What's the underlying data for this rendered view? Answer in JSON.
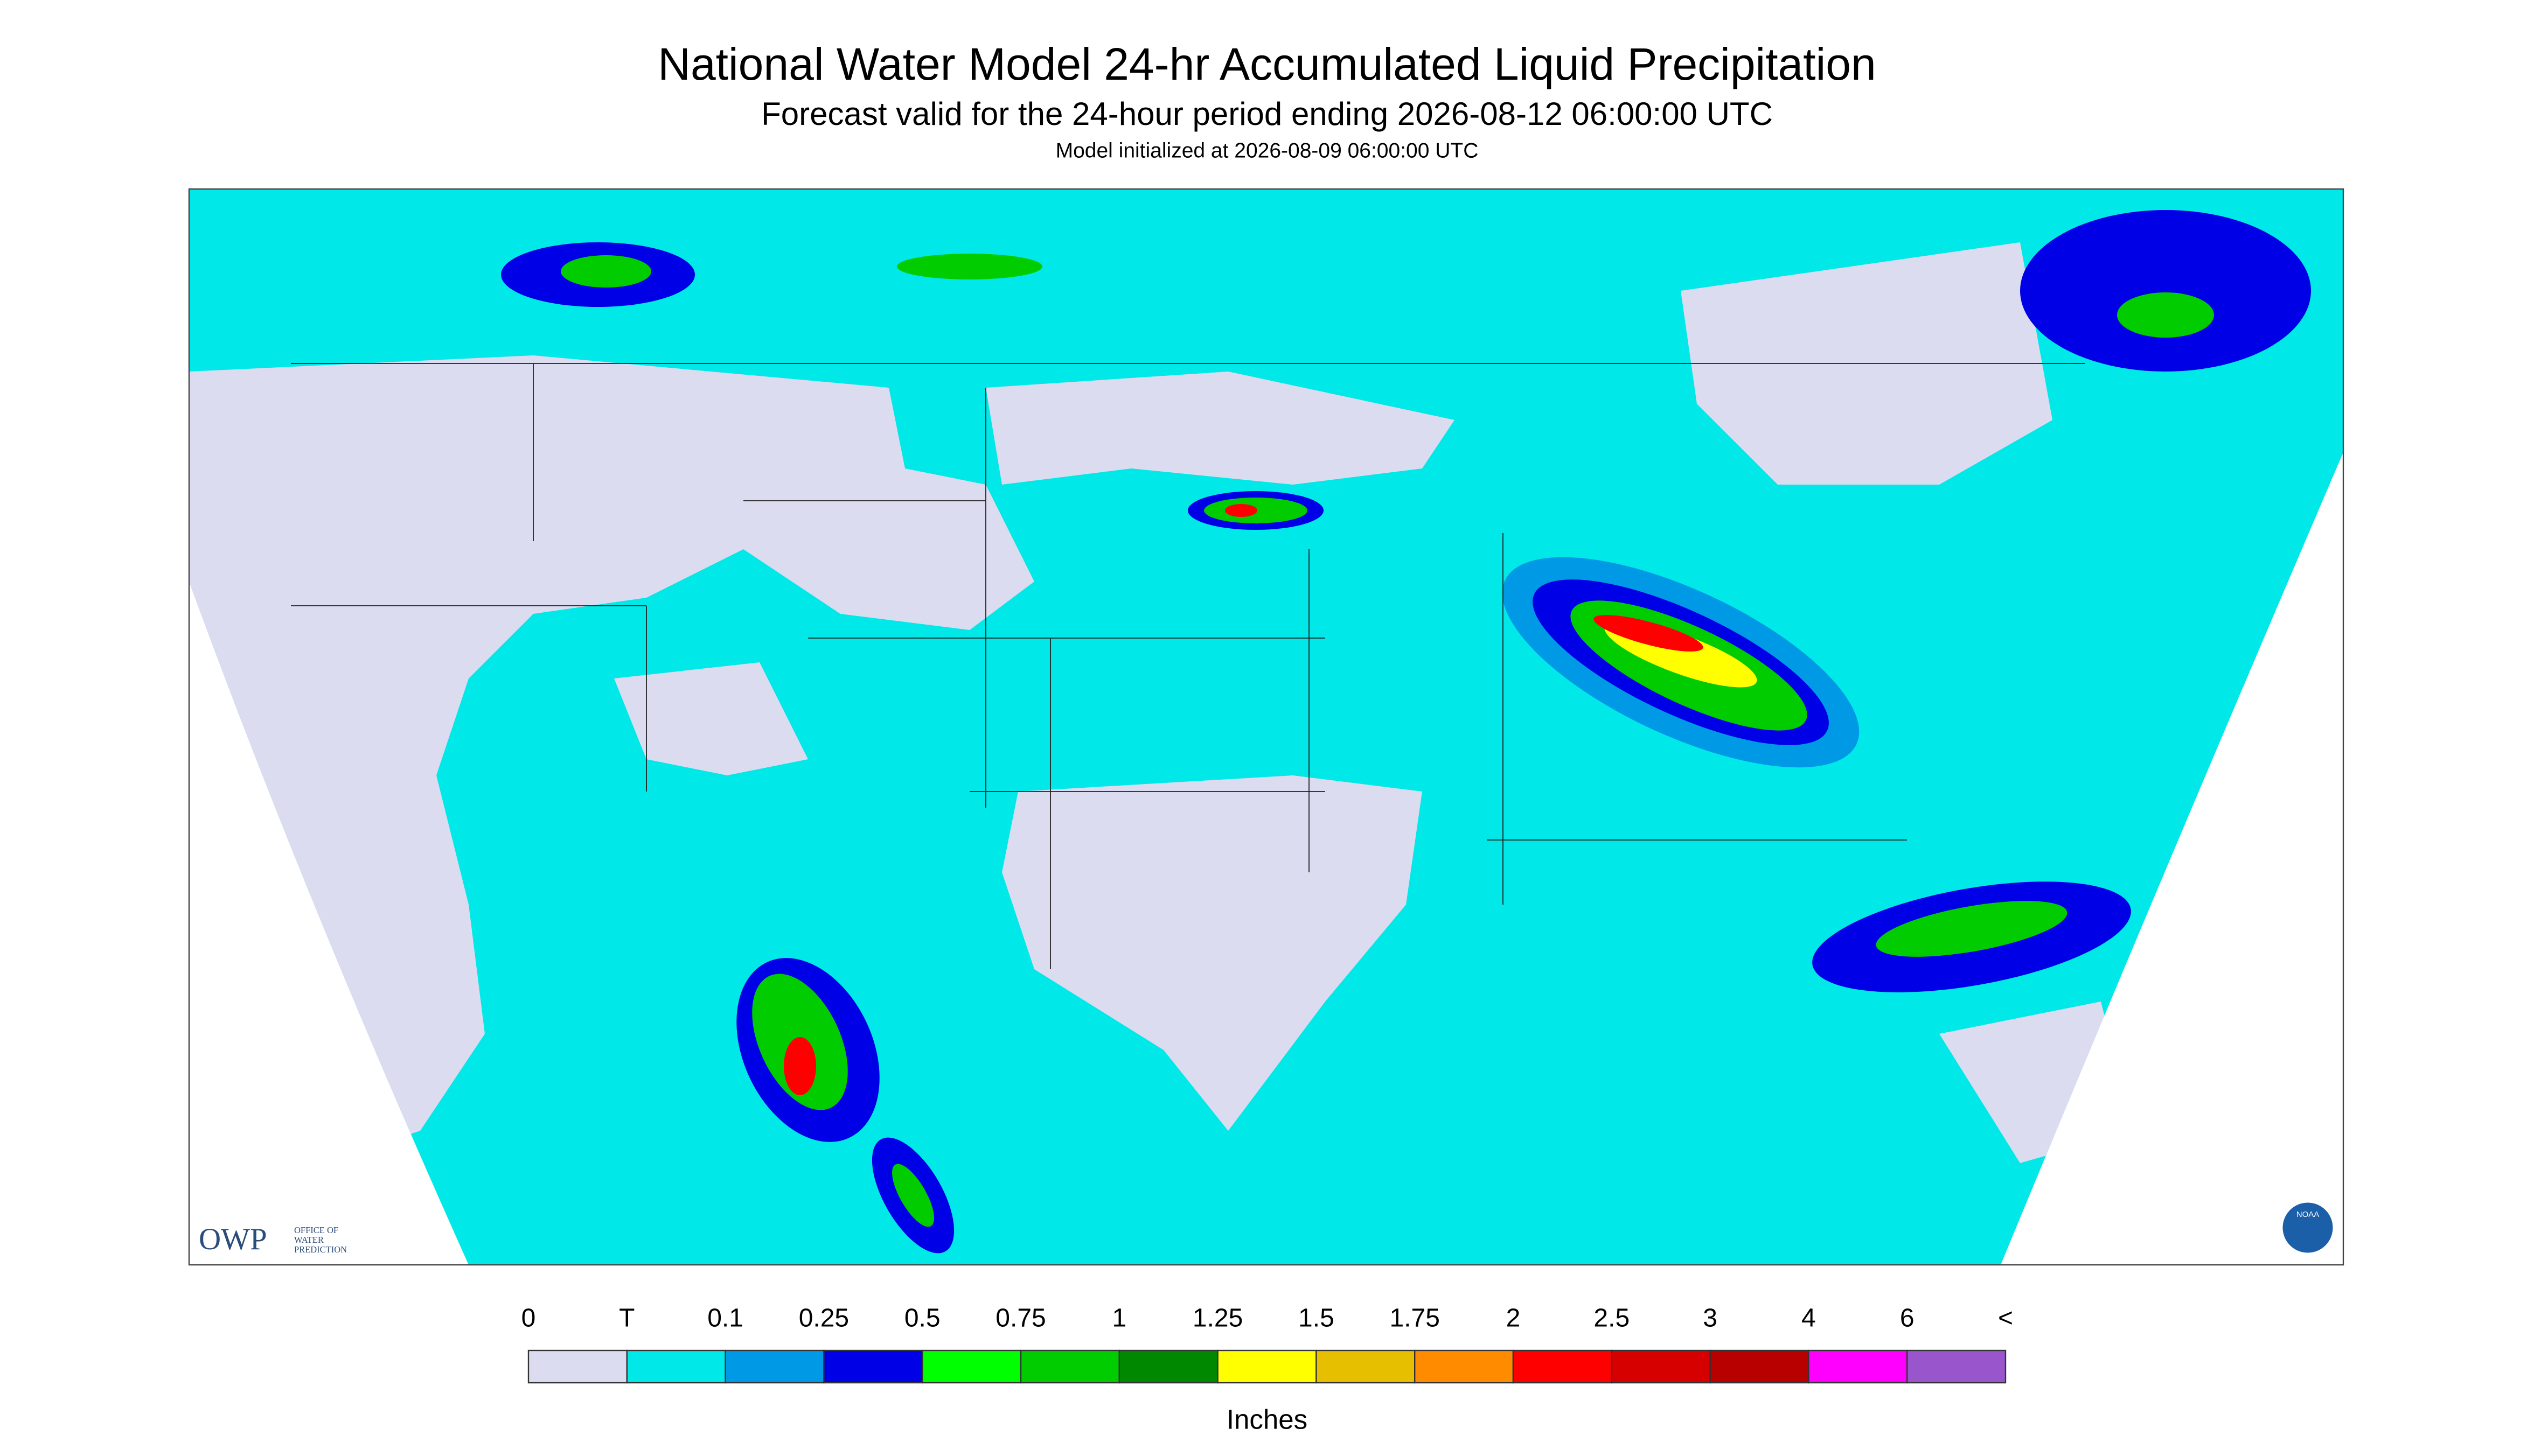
{
  "header": {
    "title": "National Water Model 24-hr Accumulated Liquid Precipitation",
    "subtitle": "Forecast valid for the 24-hour period ending 2026-08-12 06:00:00 UTC",
    "initialized": "Model initialized at 2026-08-09 06:00:00 UTC"
  },
  "legend": {
    "labels": [
      "0",
      "T",
      "0.1",
      "0.25",
      "0.5",
      "0.75",
      "1",
      "1.25",
      "1.5",
      "1.75",
      "2",
      "2.5",
      "3",
      "4",
      "6",
      "<"
    ],
    "colors": [
      "#dcdcf0",
      "#00e8e8",
      "#0099e6",
      "#0000e6",
      "#00ff00",
      "#00cc00",
      "#008800",
      "#ffff00",
      "#e6bf00",
      "#ff8c00",
      "#ff0000",
      "#d60000",
      "#b80000",
      "#ff00ff",
      "#9955cc"
    ],
    "unit": "Inches"
  },
  "logos": {
    "owp": "OWP",
    "owp_text": [
      "OFFICE OF",
      "WATER",
      "PREDICTION"
    ],
    "noaa": "NOAA"
  }
}
